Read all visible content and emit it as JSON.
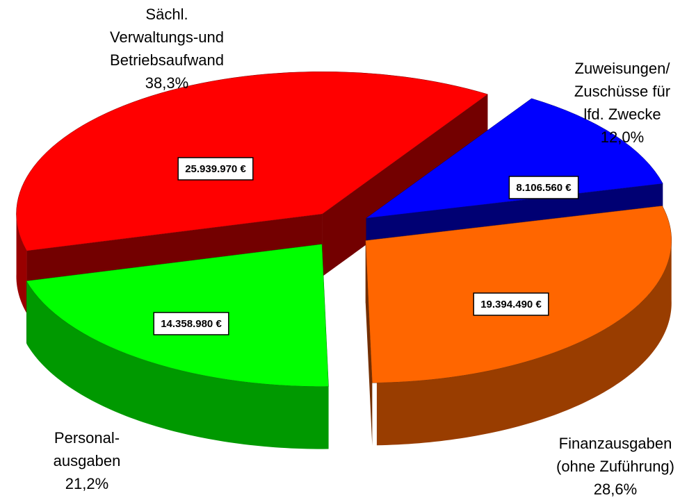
{
  "chart_data": {
    "type": "pie3d",
    "labels": [
      [
        "Sächl.",
        "Verwaltungs-und",
        "Betriebsaufwand"
      ],
      [
        "Zuweisungen/",
        "Zuschüsse für",
        "lfd. Zwecke"
      ],
      [
        "Finanzausgaben",
        "(ohne Zuführung)"
      ],
      [
        "Personal-",
        "ausgaben"
      ]
    ],
    "values": [
      38.3,
      12.0,
      28.6,
      21.2
    ],
    "value_labels": [
      "38,3%",
      "12,0%",
      "28,6%",
      "21,2%"
    ],
    "amounts": [
      25939970,
      8106560,
      19394490,
      14358980
    ],
    "amount_labels": [
      "25.939.970 €",
      "8.106.560 €",
      "19.394.490 €",
      "14.358.980 €"
    ],
    "colors": [
      "#ff0000",
      "#0000ff",
      "#ff6600",
      "#00ff00"
    ]
  }
}
